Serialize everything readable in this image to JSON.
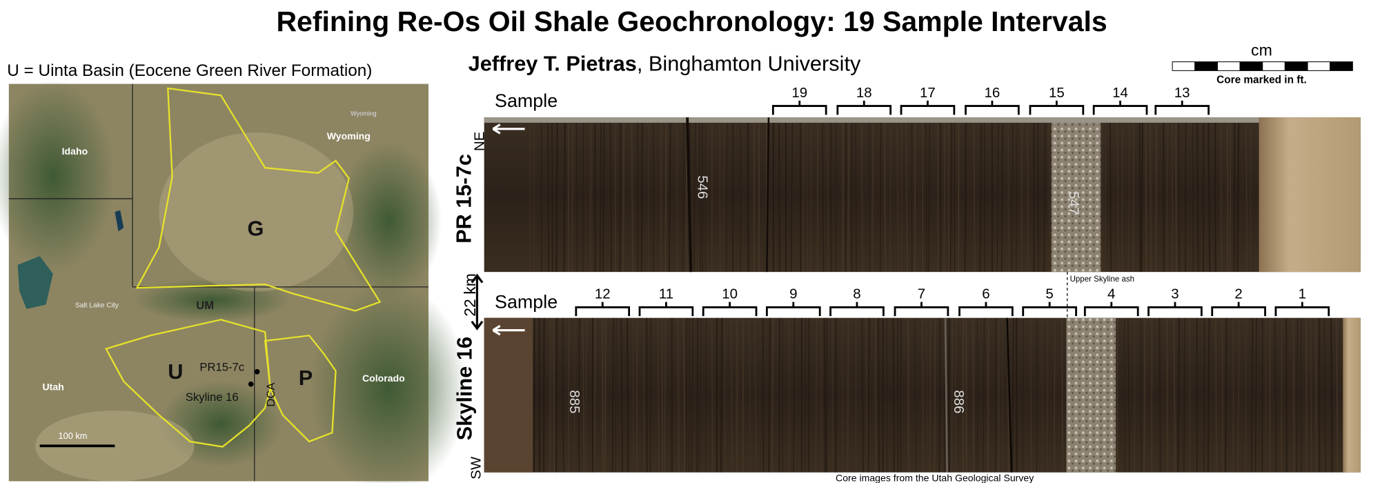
{
  "header": {
    "title": "Refining Re-Os Oil Shale Geochronology: 19 Sample Intervals",
    "author": "Jeffrey T. Pietras",
    "affiliation": ", Binghamton University"
  },
  "map": {
    "caption": "U = Uinta Basin (Eocene Green River Formation)",
    "labels": {
      "idaho": "Idaho",
      "wyoming": "Wyoming",
      "wyoming_small": "Wyoming",
      "utah": "Utah",
      "colorado": "Colorado",
      "salt_lake_city": "Salt Lake City",
      "g": "G",
      "u": "U",
      "p": "P",
      "um": "UM",
      "dca": "DCA",
      "pr": "PR15-7c",
      "skyline": "Skyline 16",
      "scale": "100 km"
    }
  },
  "scale_bar": {
    "unit": "cm",
    "note": "Core marked in ft."
  },
  "cores": [
    {
      "name": "PR 15-7c",
      "direction": "NE",
      "sample_label": "Sample",
      "samples": [
        "19",
        "18",
        "17",
        "16",
        "15",
        "14",
        "13"
      ],
      "depth_marks": [
        "546",
        "547"
      ]
    },
    {
      "name": "Skyline 16",
      "direction": "SW",
      "sample_label": "Sample",
      "samples": [
        "12",
        "11",
        "10",
        "9",
        "8",
        "7",
        "6",
        "5",
        "4",
        "3",
        "2",
        "1"
      ],
      "depth_marks": [
        "885",
        "886"
      ]
    }
  ],
  "separation": "22 km",
  "ash_label": "Upper Skyline ash",
  "credit": "Core images from the Utah Geological Survey"
}
